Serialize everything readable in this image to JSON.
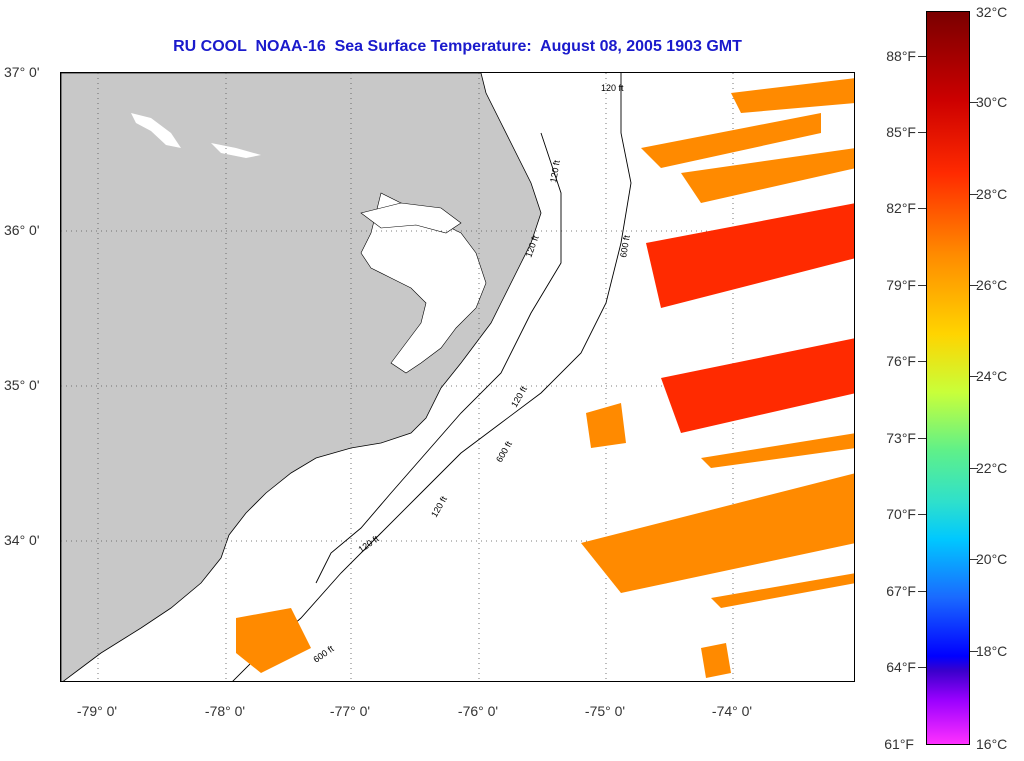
{
  "title": "RU COOL  NOAA-16  Sea Surface Temperature:  August 08, 2005 1903 GMT",
  "lat_labels": [
    "37° 0'",
    "36° 0'",
    "35° 0'",
    "34° 0'"
  ],
  "lon_labels": [
    "-79° 0'",
    "-78° 0'",
    "-77° 0'",
    "-76° 0'",
    "-75° 0'",
    "-74° 0'"
  ],
  "contour_labels": [
    "120 ft",
    "120 ft",
    "120 ft",
    "600 ft",
    "120 ft",
    "600 ft",
    "120 ft",
    "600 ft",
    "120 ft"
  ],
  "colorbar": {
    "fahrenheit": [
      "88°F",
      "85°F",
      "82°F",
      "79°F",
      "76°F",
      "73°F",
      "70°F",
      "67°F",
      "64°F",
      "61°F"
    ],
    "celsius": [
      "32°C",
      "30°C",
      "28°C",
      "26°C",
      "24°C",
      "22°C",
      "20°C",
      "18°C",
      "16°C"
    ]
  },
  "colors": {
    "title": "#1a1acc",
    "land": "#c8c8c8",
    "warm": "#ff8a00",
    "hot": "#ff2a00"
  }
}
